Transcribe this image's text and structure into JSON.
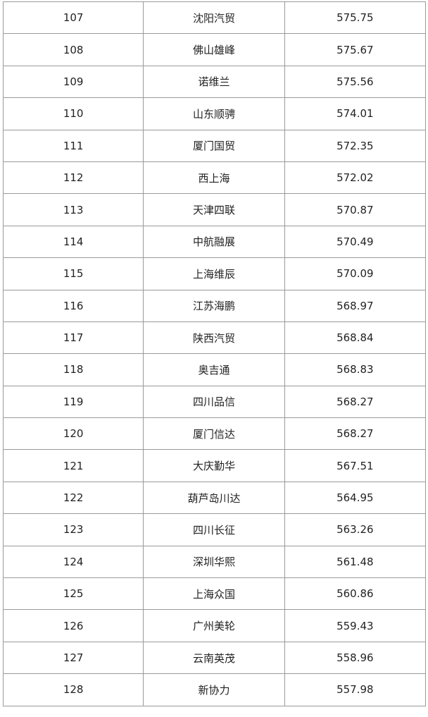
{
  "table": {
    "rows": [
      [
        "107",
        "沈阳汽贸",
        "575.75"
      ],
      [
        "108",
        "佛山雄峰",
        "575.67"
      ],
      [
        "109",
        "诺维兰",
        "575.56"
      ],
      [
        "110",
        "山东顺骋",
        "574.01"
      ],
      [
        "111",
        "厦门国贸",
        "572.35"
      ],
      [
        "112",
        "西上海",
        "572.02"
      ],
      [
        "113",
        "天津四联",
        "570.87"
      ],
      [
        "114",
        "中航融展",
        "570.49"
      ],
      [
        "115",
        "上海维辰",
        "570.09"
      ],
      [
        "116",
        "江苏海鹏",
        "568.97"
      ],
      [
        "117",
        "陕西汽贸",
        "568.84"
      ],
      [
        "118",
        "奥吉通",
        "568.83"
      ],
      [
        "119",
        "四川品信",
        "568.27"
      ],
      [
        "120",
        "厦门信达",
        "568.27"
      ],
      [
        "121",
        "大庆勤华",
        "567.51"
      ],
      [
        "122",
        "葫芦岛川达",
        "564.95"
      ],
      [
        "123",
        "四川长征",
        "563.26"
      ],
      [
        "124",
        "深圳华熙",
        "561.48"
      ],
      [
        "125",
        "上海众国",
        "560.86"
      ],
      [
        "126",
        "广州美轮",
        "559.43"
      ],
      [
        "127",
        "云南英茂",
        "558.96"
      ],
      [
        "128",
        "新协力",
        "557.98"
      ]
    ]
  }
}
